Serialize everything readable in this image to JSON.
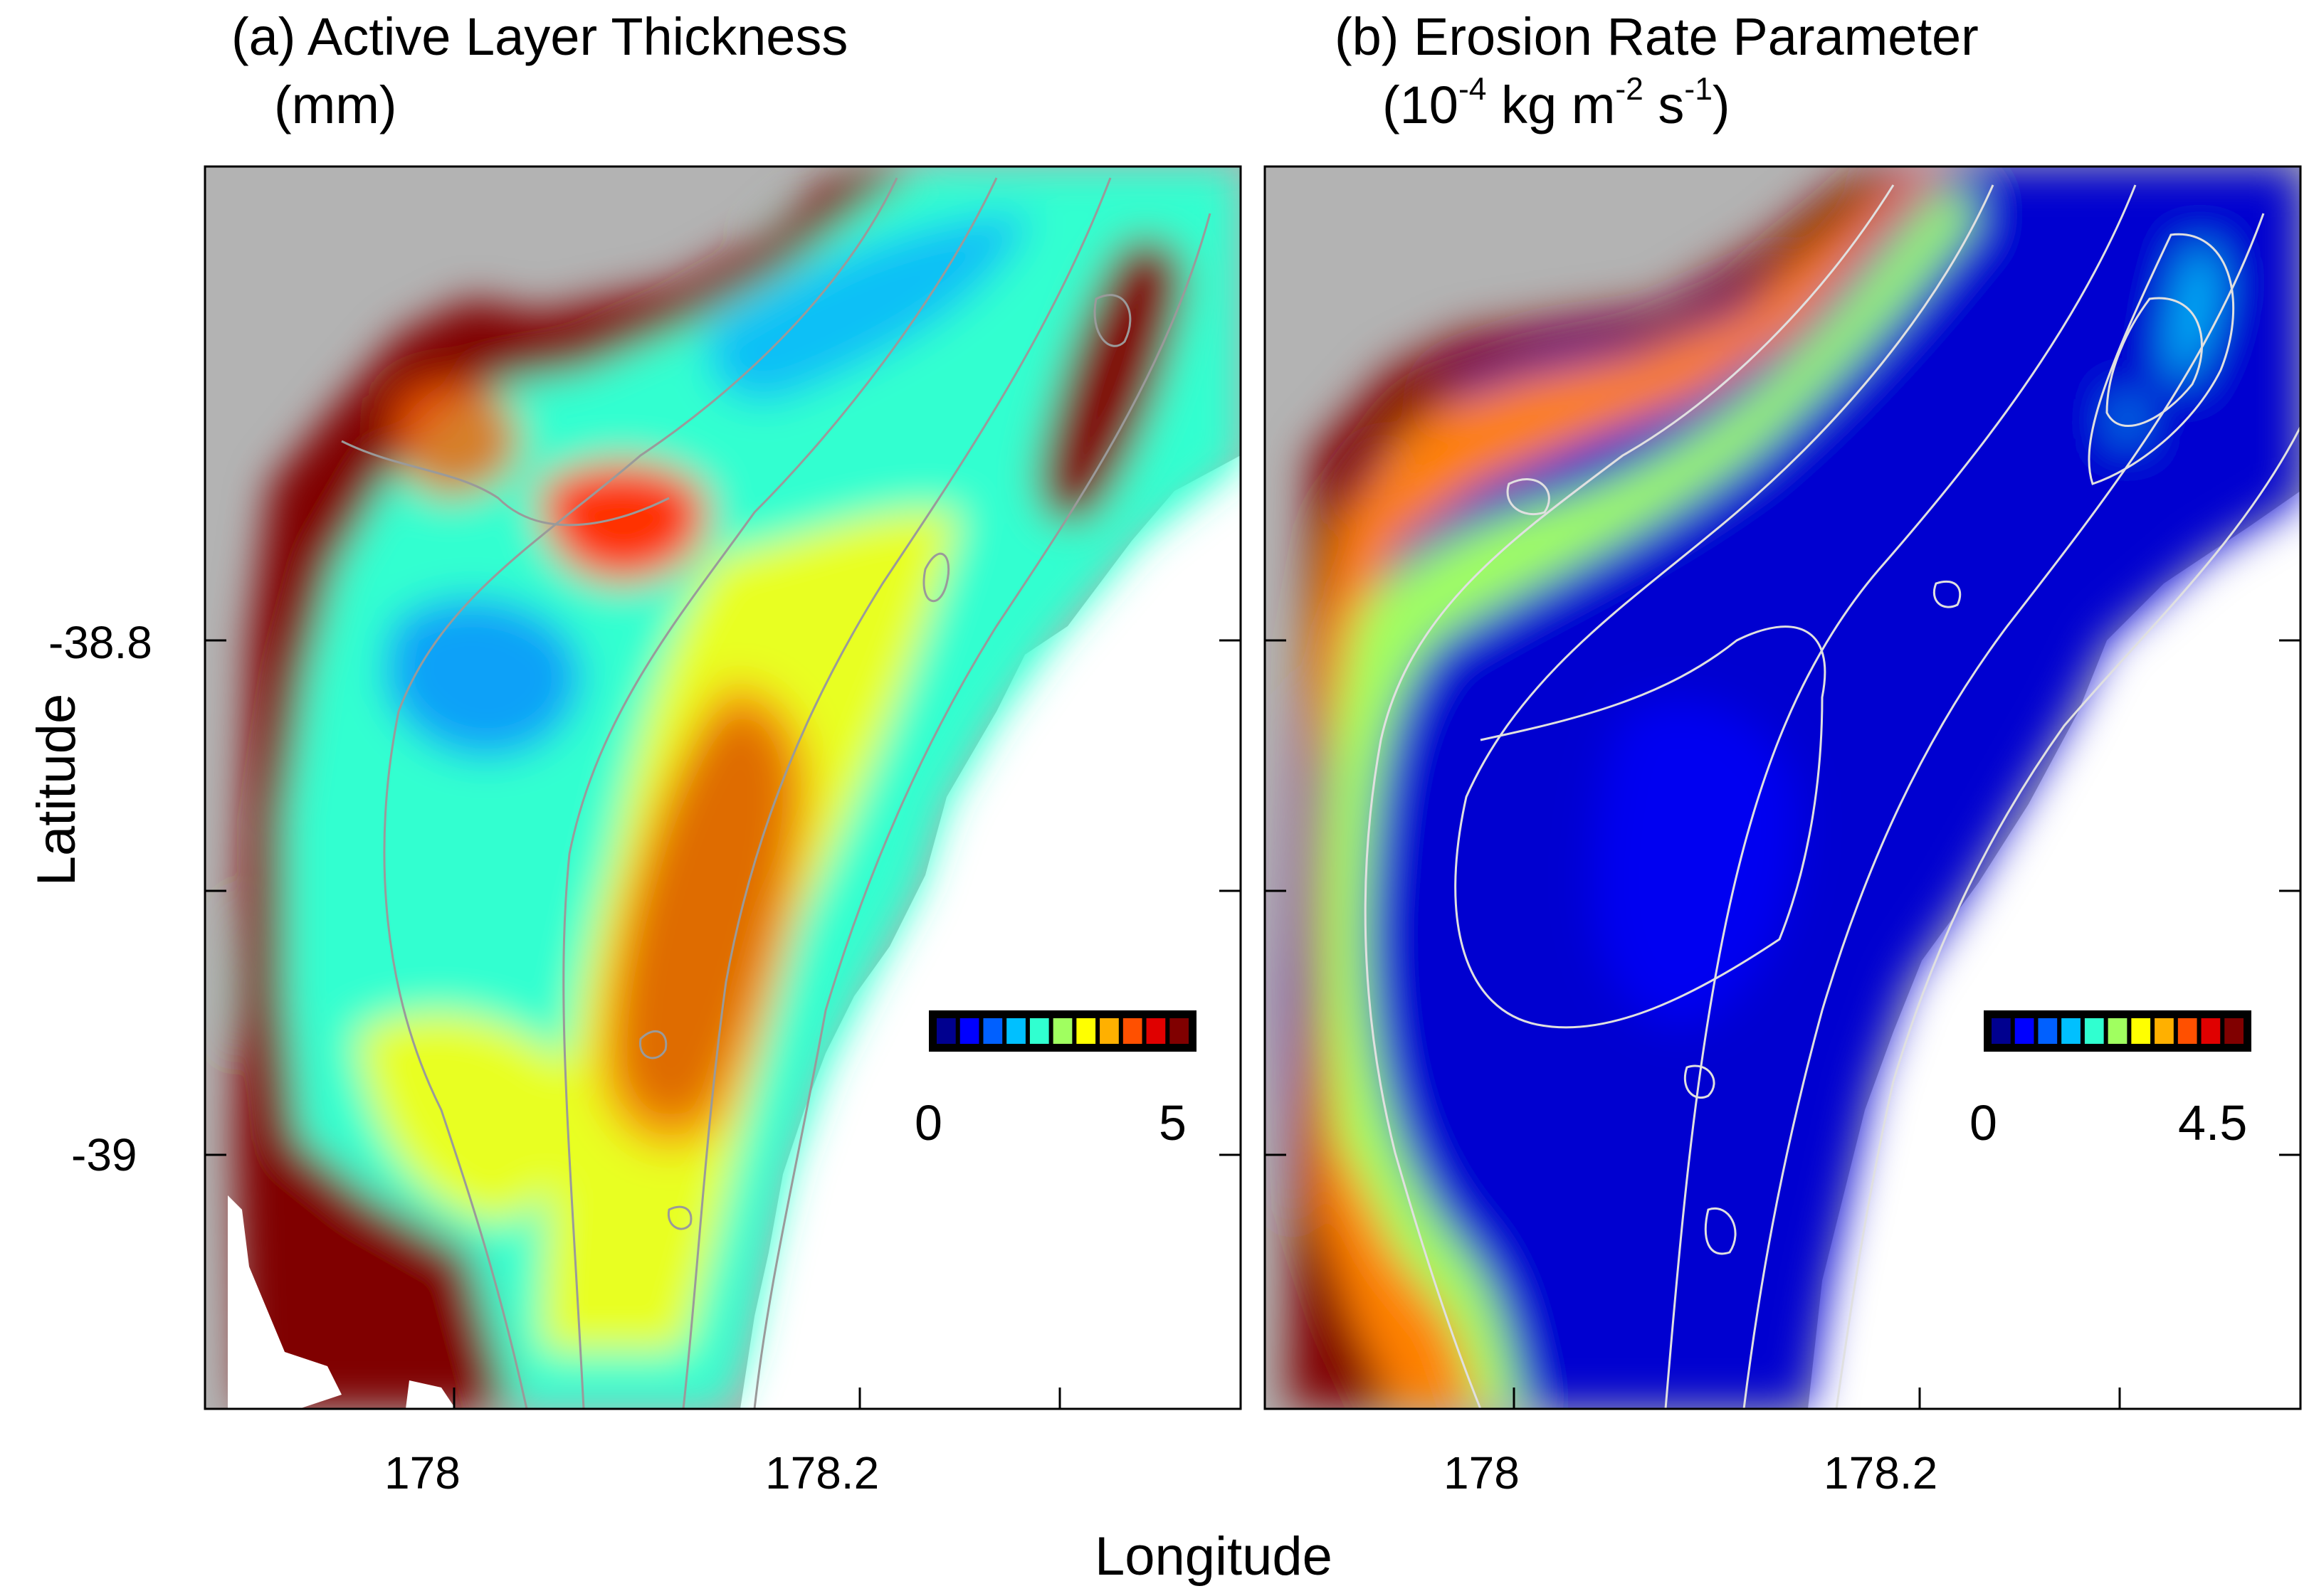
{
  "figure": {
    "y_axis_label": "Latitude",
    "x_axis_label": "Longitude",
    "y_ticks": [
      "-38.8",
      "-39"
    ],
    "x_ticks": [
      "178",
      "178.2"
    ]
  },
  "panels": [
    {
      "title_line1": "(a) Active Layer Thickness",
      "title_line2": "(mm)",
      "colorbar": {
        "min_label": "0",
        "max_label": "5",
        "vmin": 0,
        "vmax": 5
      }
    },
    {
      "title_line1": "(b) Erosion Rate Parameter",
      "title_line2_parts": {
        "open": "(10",
        "exp1": "-4",
        "mid": " kg m",
        "exp2": "-2",
        "mid2": " s",
        "exp3": "-1",
        "close": ")"
      },
      "colorbar": {
        "min_label": "0",
        "max_label": "4.5",
        "vmin": 0,
        "vmax": 4.5
      }
    }
  ],
  "colormap": [
    "#00008f",
    "#0000ff",
    "#0060ff",
    "#00c0ff",
    "#30ffd0",
    "#a0ff60",
    "#ffff00",
    "#ffb000",
    "#ff5000",
    "#e00000",
    "#800000"
  ],
  "colors": {
    "land": "#b3b3b3",
    "ocean_bg": "#ffffff",
    "contour_a": "#9a9a9a",
    "contour_b": "#e0e0e0",
    "deep_red": "#800000"
  }
}
